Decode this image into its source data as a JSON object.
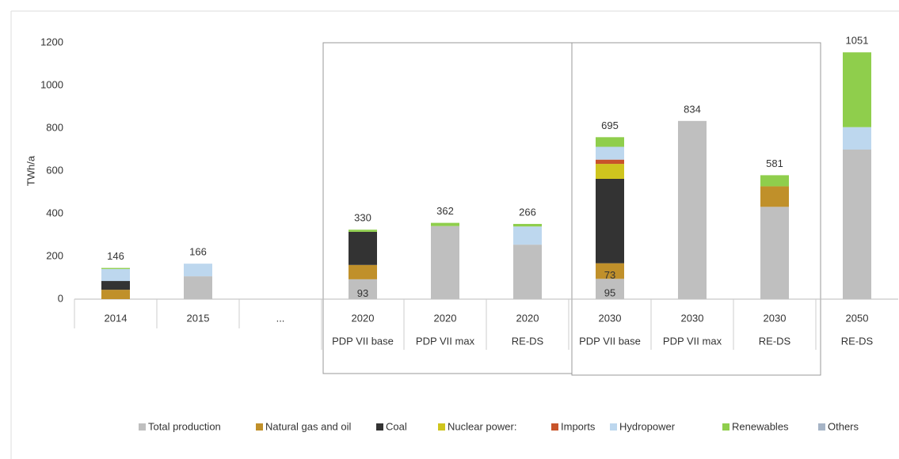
{
  "chart_data": {
    "type": "stacked_bar",
    "y_label": "TWh/a",
    "categories": [
      "2014",
      "2015",
      "...",
      "2020",
      "2020",
      "2020",
      "2030",
      "2030",
      "2030",
      "2050"
    ],
    "subcategories": [
      null,
      null,
      null,
      "PDP VII base",
      "PDP VII max",
      "RE-DS",
      "PDP VII base",
      "PDP VII max",
      "RE-DS",
      "RE-DS"
    ],
    "series": [
      {
        "name": "Total production",
        "color": "#bfbfbf",
        "values": [
          null,
          107,
          null,
          93,
          342,
          255,
          95,
          834,
          432,
          700
        ],
        "value_labels": [
          null,
          null,
          null,
          "93",
          null,
          null,
          "95",
          null,
          null,
          null
        ]
      },
      {
        "name": "Natural gas and oil",
        "color": "#c0902a",
        "values": [
          44,
          null,
          null,
          67,
          null,
          null,
          73,
          null,
          96,
          null
        ],
        "value_labels": [
          null,
          null,
          null,
          null,
          null,
          null,
          "73",
          null,
          null,
          null
        ]
      },
      {
        "name": "Coal",
        "color": "#333333",
        "values": [
          41,
          null,
          null,
          155,
          null,
          null,
          395,
          null,
          null,
          null
        ]
      },
      {
        "name": "Nuclear power:",
        "color": "#cfc51e",
        "values": [
          null,
          null,
          null,
          null,
          null,
          null,
          70,
          null,
          null,
          null
        ]
      },
      {
        "name": "Imports",
        "color": "#c8542a",
        "values": [
          null,
          null,
          null,
          null,
          null,
          null,
          20,
          null,
          null,
          null
        ]
      },
      {
        "name": "Hydropower",
        "color": "#bdd7ee",
        "values": [
          56,
          59,
          null,
          null,
          null,
          85,
          60,
          null,
          null,
          105
        ]
      },
      {
        "name": "Renewables",
        "color": "#8fce4c",
        "values": [
          5,
          null,
          null,
          10,
          15,
          12,
          45,
          null,
          52,
          350
        ]
      },
      {
        "name": "Others",
        "color": "#a6b4c6",
        "values": [
          null,
          null,
          null,
          null,
          null,
          null,
          null,
          null,
          null,
          null
        ]
      }
    ],
    "totals": [
      146,
      166,
      null,
      330,
      362,
      266,
      695,
      834,
      581,
      1051
    ],
    "ylim": [
      0,
      1200
    ],
    "yticks": [
      0,
      200,
      400,
      600,
      800,
      1000,
      1200
    ]
  }
}
